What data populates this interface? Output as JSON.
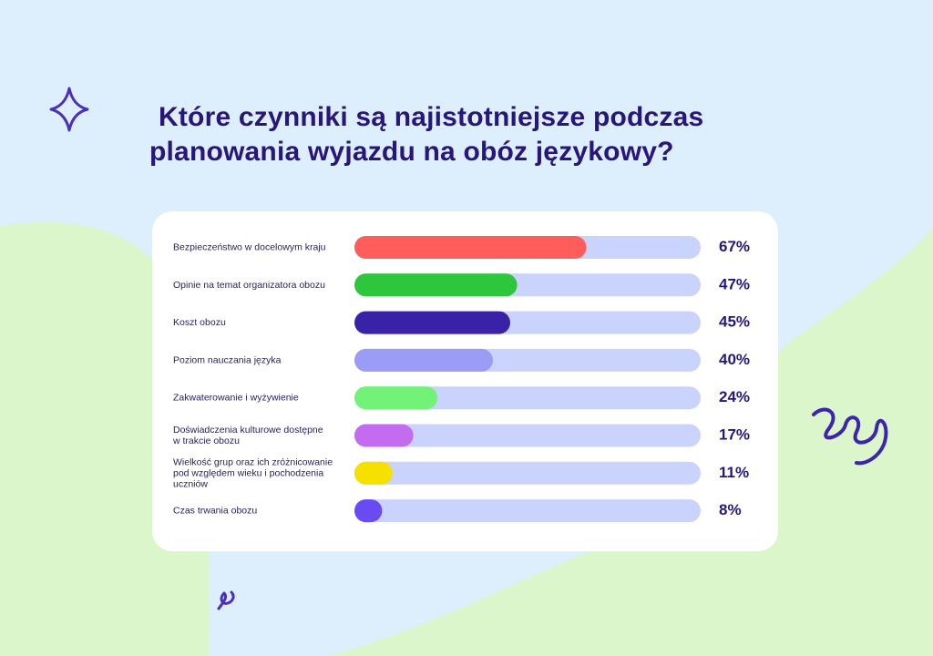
{
  "title": {
    "line1": "Które czynniki są najistotniejsze podczas",
    "line2": "planowania wyjazdu na obóz językowy?"
  },
  "colors": {
    "background": "#ddeefc",
    "track": "#c9d3fb",
    "title": "#28167a",
    "accent": "#4a2fb8"
  },
  "decorations": [
    "sparkle-icon",
    "squiggle-icon",
    "small-squiggle-icon"
  ],
  "chart_data": {
    "type": "bar",
    "orientation": "horizontal",
    "categories": [
      [
        "Bezpieczeństwo w docelowym kraju"
      ],
      [
        "Opinie na temat organizatora obozu"
      ],
      [
        "Koszt obozu"
      ],
      [
        "Poziom nauczania języka"
      ],
      [
        "Zakwaterowanie i wyżywienie"
      ],
      [
        "Doświadczenia kulturowe dostępne",
        "w trakcie obozu"
      ],
      [
        "Wielkość grup oraz ich zróżnicowanie",
        "pod względem wieku i pochodzenia",
        "uczniów"
      ],
      [
        "Czas trwania obozu"
      ]
    ],
    "values": [
      67,
      47,
      45,
      40,
      24,
      17,
      11,
      8
    ],
    "value_labels": [
      "67%",
      "47%",
      "45%",
      "40%",
      "24%",
      "17%",
      "11%",
      "8%"
    ],
    "bar_colors": [
      "#ff5c5c",
      "#2ec63c",
      "#3a22a8",
      "#9a9cf5",
      "#72f276",
      "#c46cf0",
      "#f6e000",
      "#6a4af2"
    ],
    "xlim": [
      0,
      100
    ],
    "grid": false,
    "legend": false
  }
}
